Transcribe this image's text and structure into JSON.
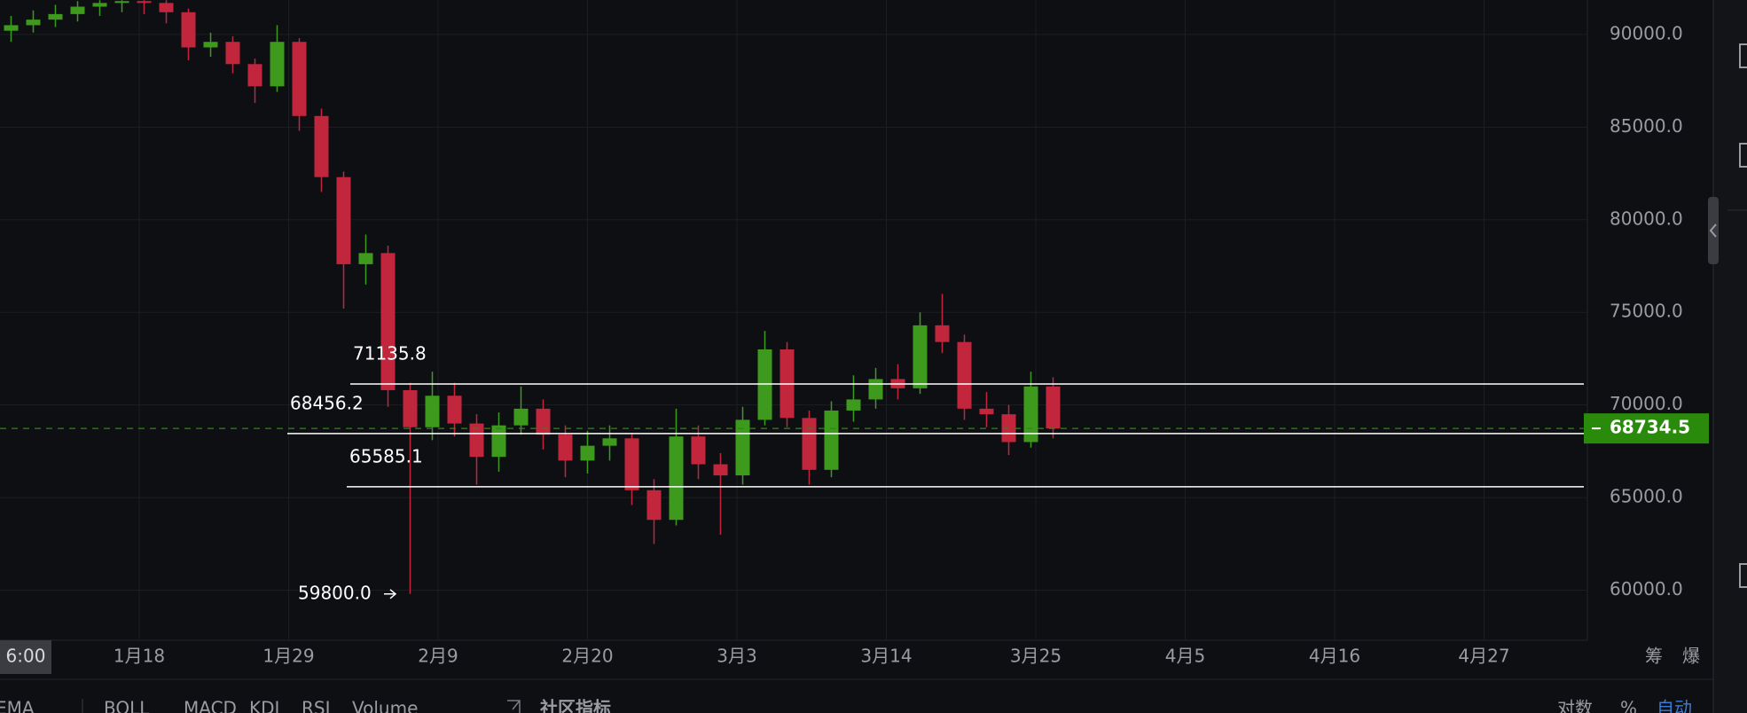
{
  "chart_data": {
    "type": "candlestick",
    "categories": [
      "1月18",
      "1月29",
      "2月9",
      "2月20",
      "3月3",
      "3月14",
      "3月25",
      "4月5",
      "4月16",
      "4月27"
    ],
    "ylim": [
      57300,
      91860
    ],
    "yticks": [
      {
        "value": 60000,
        "label": "60000.0"
      },
      {
        "value": 65000,
        "label": "65000.0"
      },
      {
        "value": 70000,
        "label": "70000.0"
      },
      {
        "value": 75000,
        "label": "75000.0"
      },
      {
        "value": 80000,
        "label": "80000.0"
      },
      {
        "value": 85000,
        "label": "85000.0"
      },
      {
        "value": 90000,
        "label": "90000.0"
      }
    ],
    "grid": true,
    "up_color": "#3d9a1c",
    "down_color": "#c2263c",
    "candles": {
      "open": [
        90200,
        90500,
        90800,
        91100,
        91500,
        91700,
        91800,
        91700,
        91200,
        89300,
        89600,
        88400,
        87200,
        89600,
        85600,
        82300,
        77600,
        78200,
        70800,
        68800,
        70500,
        69000,
        67200,
        68900,
        69800,
        68400,
        67000,
        67800,
        68200,
        65400,
        63800,
        68300,
        66800,
        66200,
        69200,
        73000,
        69300,
        66500,
        69700,
        70300,
        71400,
        70900,
        74300,
        73400,
        69800,
        69500,
        68000,
        71000
      ],
      "high": [
        91000,
        91300,
        91600,
        91800,
        91850,
        91850,
        91850,
        91850,
        91400,
        90100,
        89900,
        88700,
        90500,
        89800,
        86000,
        82600,
        79200,
        78600,
        71200,
        71800,
        71200,
        69500,
        69600,
        71000,
        70300,
        68900,
        68600,
        68900,
        68500,
        66000,
        69800,
        68900,
        67400,
        69900,
        74000,
        73400,
        69700,
        70200,
        71600,
        72000,
        72200,
        75000,
        76000,
        73800,
        70700,
        70000,
        71800,
        71500
      ],
      "low": [
        89600,
        90100,
        90400,
        90700,
        91000,
        91200,
        91100,
        90600,
        88600,
        88800,
        87900,
        86300,
        86900,
        84800,
        81500,
        75200,
        76500,
        69900,
        59800,
        68100,
        68300,
        65700,
        66400,
        68400,
        67600,
        66100,
        66300,
        67000,
        64600,
        62500,
        63500,
        66000,
        63000,
        65700,
        68900,
        68800,
        65700,
        66100,
        69100,
        69800,
        70300,
        70600,
        72800,
        69200,
        68800,
        67300,
        67700,
        68200
      ],
      "close": [
        90500,
        90800,
        91100,
        91500,
        91700,
        91800,
        91700,
        91200,
        89300,
        89600,
        88400,
        87200,
        89600,
        85600,
        82300,
        77600,
        78200,
        70800,
        68800,
        70500,
        69000,
        67200,
        68900,
        69800,
        68400,
        67000,
        67800,
        68200,
        65400,
        63800,
        68300,
        66800,
        66200,
        69200,
        73000,
        69300,
        66500,
        69700,
        70300,
        71400,
        70900,
        74300,
        73400,
        69800,
        69500,
        68000,
        71000,
        68734.5
      ]
    },
    "levels": [
      71135.8,
      68456.2,
      65585.1
    ],
    "level_color": "#ffffff",
    "last_price": 68734.5,
    "last_price_color": "#2a8a0c",
    "low_annotation": {
      "value": 59800,
      "label": "59800.0"
    }
  },
  "toolbar": {
    "time_label": "6:00",
    "right_labels": [
      "筹",
      "爆"
    ],
    "indicators": [
      "EMA",
      "BOLL",
      "MACD",
      "KDJ",
      "RSI",
      "Volume"
    ],
    "community": "社区指标",
    "scale_options": [
      "对数",
      "%",
      "自动"
    ]
  }
}
